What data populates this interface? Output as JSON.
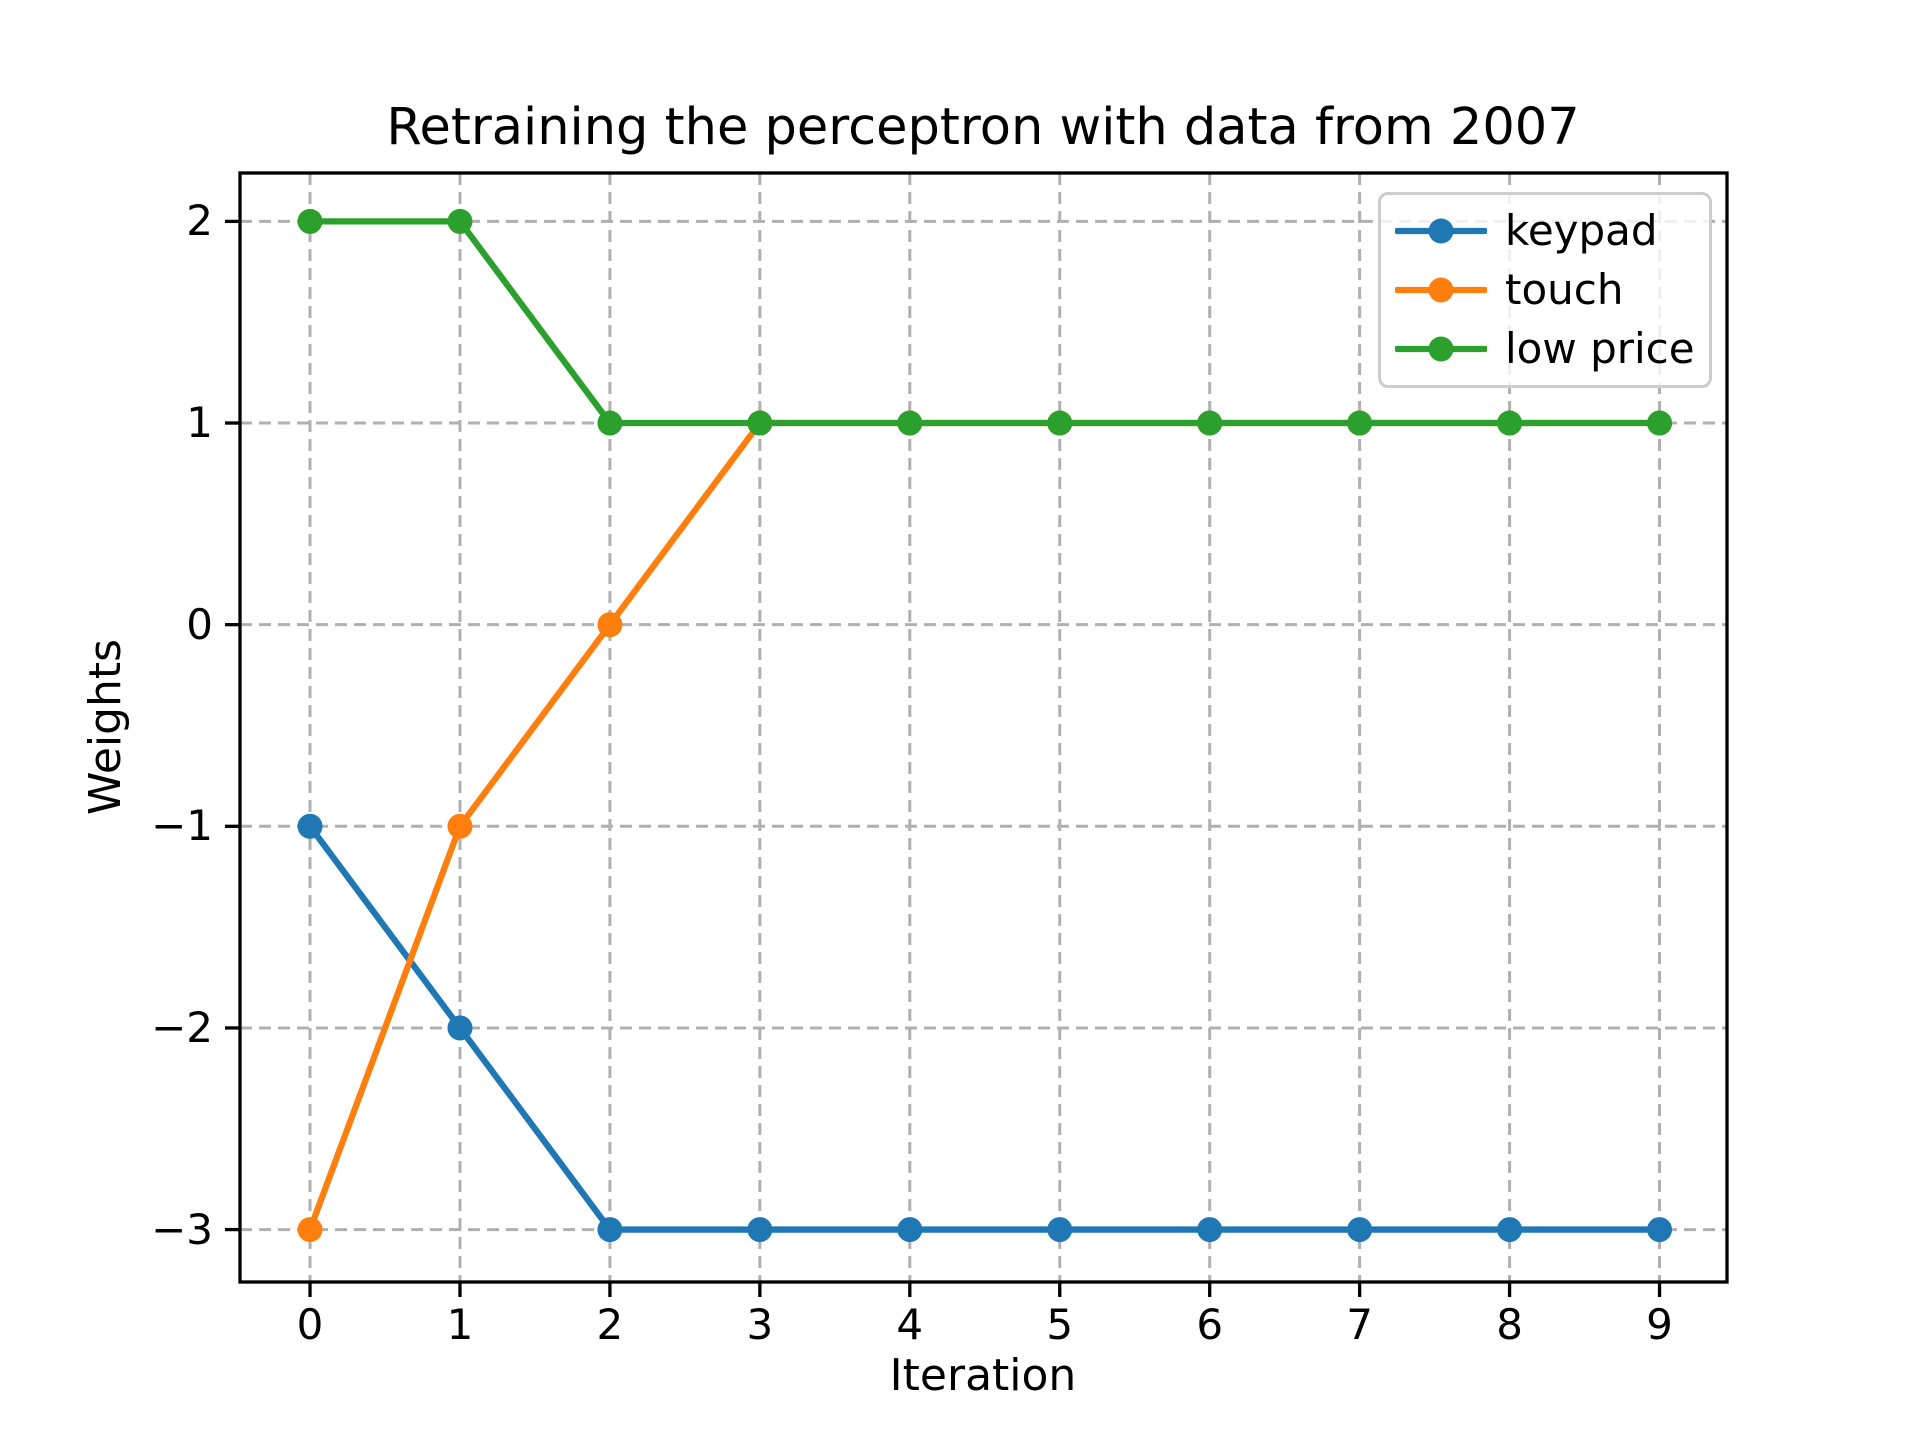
{
  "chart_data": {
    "type": "line",
    "title": "Retraining the perceptron with data from 2007",
    "xlabel": "Iteration",
    "ylabel": "Weights",
    "x": [
      0,
      1,
      2,
      3,
      4,
      5,
      6,
      7,
      8,
      9
    ],
    "series": [
      {
        "name": "keypad",
        "color": "#1f77b4",
        "values": [
          -1,
          -2,
          -3,
          -3,
          -3,
          -3,
          -3,
          -3,
          -3,
          -3
        ]
      },
      {
        "name": "touch",
        "color": "#ff7f0e",
        "values": [
          -3,
          -1,
          0,
          1,
          1,
          1,
          1,
          1,
          1,
          1
        ]
      },
      {
        "name": "low price",
        "color": "#2ca02c",
        "values": [
          2,
          2,
          1,
          1,
          1,
          1,
          1,
          1,
          1,
          1
        ]
      }
    ],
    "xticks": [
      0,
      1,
      2,
      3,
      4,
      5,
      6,
      7,
      8,
      9
    ],
    "yticks": [
      2,
      1,
      0,
      -1,
      -2,
      -3
    ],
    "xlim": [
      -0.467,
      9.45
    ],
    "ylim": [
      -3.26,
      2.24
    ],
    "grid": true,
    "legend_position": "upper right",
    "legend_entries": [
      "keypad",
      "touch",
      "low price"
    ],
    "colors": {
      "grid": "#b0b0b0",
      "axis": "#000000",
      "legend_border": "#cccccc",
      "background": "#ffffff"
    }
  }
}
